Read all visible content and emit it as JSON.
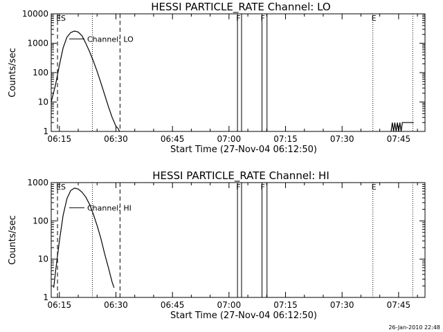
{
  "chart_data": [
    {
      "type": "line",
      "title": "HESSI PARTICLE_RATE Channel: LO",
      "xlabel": "Start Time (27-Nov-04 06:12:50)",
      "ylabel": "Counts/sec",
      "y_scale": "log",
      "ylim": [
        1,
        10000
      ],
      "xlim": [
        "06:12:50",
        "07:52:00"
      ],
      "x_ticks": [
        "06:15",
        "06:30",
        "06:45",
        "07:00",
        "07:15",
        "07:30",
        "07:45"
      ],
      "y_ticks": [
        "1",
        "10",
        "100",
        "1000",
        "10000"
      ],
      "legend_label": "Channel: LO",
      "markers": [
        {
          "label": "ES",
          "time": "06:14:30",
          "style": "dashed"
        },
        {
          "label": "",
          "time": "06:23:45",
          "style": "dotted"
        },
        {
          "label": "",
          "time": "06:31:05",
          "style": "dashed"
        },
        {
          "label": "F",
          "time": "07:02:15",
          "style": "solid"
        },
        {
          "label": "",
          "time": "07:03:20",
          "style": "solid"
        },
        {
          "label": "F",
          "time": "07:08:45",
          "style": "solid"
        },
        {
          "label": "",
          "time": "07:10:05",
          "style": "solid"
        },
        {
          "label": "E",
          "time": "07:38:10",
          "style": "dotted"
        },
        {
          "label": "",
          "time": "07:48:45",
          "style": "dotted"
        }
      ],
      "series": [
        {
          "x": [
            "06:12:50",
            "06:14:00",
            "06:15:00",
            "06:16:00",
            "06:17:00",
            "06:18:00",
            "06:19:00",
            "06:20:00",
            "06:21:00",
            "06:22:00",
            "06:23:00",
            "06:24:00",
            "06:25:00",
            "06:26:00",
            "06:27:00",
            "06:28:00",
            "06:29:00",
            "06:30:00",
            "06:30:30",
            "06:31:00"
          ],
          "y": [
            10,
            40,
            180,
            700,
            1600,
            2300,
            2600,
            2400,
            1800,
            1000,
            520,
            250,
            110,
            45,
            18,
            7,
            3,
            1.5,
            1.3,
            1
          ]
        },
        {
          "x": [
            "07:43:00",
            "07:43:20",
            "07:43:40",
            "07:44:00",
            "07:44:20",
            "07:44:40",
            "07:45:00",
            "07:45:20",
            "07:45:40",
            "07:46:00",
            "07:47:00",
            "07:48:00",
            "07:49:00"
          ],
          "y": [
            1,
            2,
            1,
            2,
            1,
            2,
            1,
            2,
            1,
            2,
            2,
            2,
            2
          ]
        }
      ]
    },
    {
      "type": "line",
      "title": "HESSI PARTICLE_RATE Channel: HI",
      "xlabel": "Start Time (27-Nov-04 06:12:50)",
      "ylabel": "Counts/sec",
      "y_scale": "log",
      "ylim": [
        1,
        1000
      ],
      "xlim": [
        "06:12:50",
        "07:52:00"
      ],
      "x_ticks": [
        "06:15",
        "06:30",
        "06:45",
        "07:00",
        "07:15",
        "07:30",
        "07:45"
      ],
      "y_ticks": [
        "1",
        "10",
        "100",
        "1000"
      ],
      "legend_label": "Channel: HI",
      "markers": [
        {
          "label": "ES",
          "time": "06:14:30",
          "style": "dashed"
        },
        {
          "label": "",
          "time": "06:23:45",
          "style": "dotted"
        },
        {
          "label": "",
          "time": "06:31:05",
          "style": "dashed"
        },
        {
          "label": "F",
          "time": "07:02:15",
          "style": "solid"
        },
        {
          "label": "",
          "time": "07:03:20",
          "style": "solid"
        },
        {
          "label": "F",
          "time": "07:08:45",
          "style": "solid"
        },
        {
          "label": "",
          "time": "07:10:05",
          "style": "solid"
        },
        {
          "label": "E",
          "time": "07:38:10",
          "style": "dotted"
        },
        {
          "label": "",
          "time": "07:48:45",
          "style": "dotted"
        }
      ],
      "series": [
        {
          "x": [
            "06:13:30",
            "06:14:00",
            "06:15:00",
            "06:16:00",
            "06:17:00",
            "06:18:00",
            "06:19:00",
            "06:20:00",
            "06:21:00",
            "06:22:00",
            "06:23:00",
            "06:24:00",
            "06:25:00",
            "06:26:00",
            "06:27:00",
            "06:28:00",
            "06:29:00",
            "06:29:30"
          ],
          "y": [
            1.8,
            5,
            30,
            140,
            380,
            620,
            720,
            680,
            560,
            420,
            270,
            150,
            75,
            35,
            14,
            6,
            2.5,
            1.8
          ]
        }
      ]
    }
  ],
  "footer": {
    "timestamp": "26-Jan-2010 22:48"
  }
}
